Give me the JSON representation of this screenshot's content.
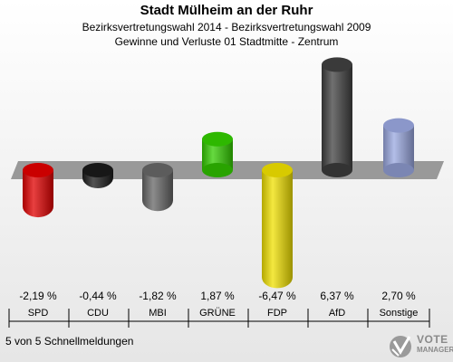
{
  "header": {
    "title": "Stadt Mülheim an der Ruhr",
    "subtitle1": "Bezirksvertretungswahl 2014 - Bezirksvertretungswahl 2009",
    "subtitle2": "Gewinne und Verluste 01 Stadtmitte - Zentrum"
  },
  "footer": {
    "status": "5 von 5 Schnellmeldungen",
    "logo_line1": "VOTE",
    "logo_line2": "MANAGER"
  },
  "chart_data": {
    "type": "bar",
    "categories": [
      "SPD",
      "CDU",
      "MBI",
      "GRÜNE",
      "FDP",
      "AfD",
      "Sonstige"
    ],
    "values": [
      -2.19,
      -0.44,
      -1.82,
      1.87,
      -6.47,
      6.37,
      2.7
    ],
    "value_labels": [
      "-2,19 %",
      "-0,44 %",
      "-1,82 %",
      "1,87 %",
      "-6,47 %",
      "6,37 %",
      "2,70 %"
    ],
    "colors": [
      "#e00000",
      "#1a1a1a",
      "#666666",
      "#33cc00",
      "#f0e000",
      "#404040",
      "#9aa8e0"
    ],
    "ylim": [
      -6.47,
      6.37
    ],
    "grid": false,
    "legend": "none"
  }
}
